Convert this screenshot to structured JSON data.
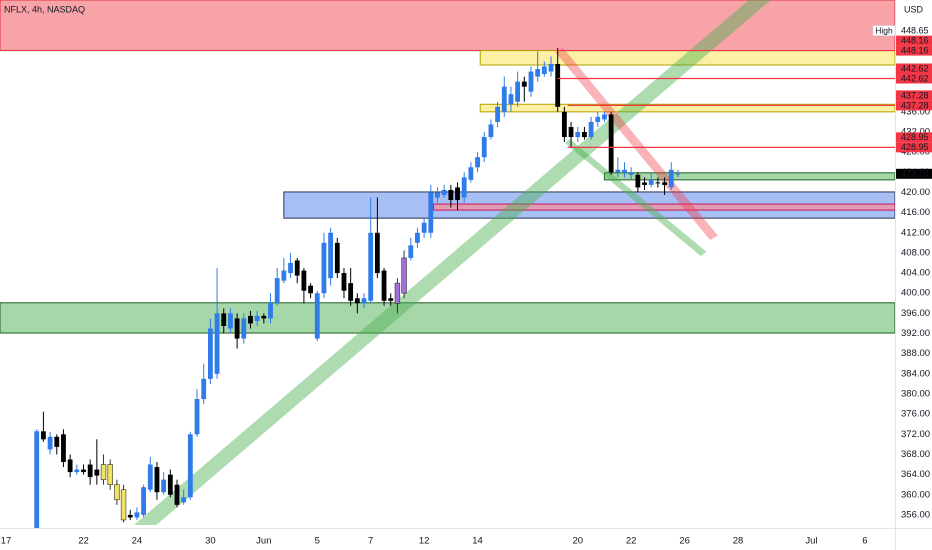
{
  "chart_data": {
    "type": "candlestick",
    "title": "NFLX, 4h, NASDAQ",
    "currency": "USD",
    "up_color": "#2f7bea",
    "down_color": "#000000",
    "grid": false,
    "categories": [
      "17",
      null,
      null,
      null,
      null,
      null,
      null,
      null,
      null,
      null,
      null,
      null,
      "22",
      null,
      null,
      null,
      null,
      null,
      null,
      null,
      "24",
      null,
      null,
      null,
      null,
      null,
      null,
      null,
      null,
      null,
      null,
      "30",
      null,
      null,
      null,
      null,
      null,
      null,
      null,
      "Jun",
      null,
      null,
      null,
      null,
      null,
      null,
      null,
      "5",
      null,
      null,
      null,
      null,
      null,
      null,
      null,
      "7",
      null,
      null,
      null,
      null,
      null,
      null,
      null,
      "12",
      null,
      null,
      null,
      null,
      null,
      null,
      null,
      "14",
      null,
      null,
      null,
      null,
      null,
      null,
      null,
      null,
      null,
      null,
      null,
      null,
      null,
      null,
      "20",
      null,
      null,
      null,
      null,
      null,
      null,
      null,
      "22",
      null,
      null,
      null,
      null,
      null,
      null,
      null,
      "26",
      null,
      null,
      null,
      null,
      null,
      null,
      null,
      "28",
      null,
      null,
      null,
      null,
      null,
      null,
      null,
      null,
      null,
      null,
      "Jul",
      null,
      null,
      null,
      null,
      null,
      null,
      null,
      "6",
      null,
      null,
      null,
      null
    ],
    "open": [
      null,
      null,
      null,
      null,
      null,
      352.5,
      372.6,
      369,
      371.5,
      372,
      367,
      364.5,
      365,
      366,
      365,
      363,
      366,
      362,
      361,
      356,
      355.5,
      356,
      361,
      365.5,
      360.5,
      364,
      362,
      358.5,
      359.5,
      372,
      379,
      383,
      384,
      396,
      393,
      395,
      391,
      395.5,
      394.5,
      395.5,
      395,
      398,
      402.5,
      404,
      406.5,
      404.5,
      401.5,
      391,
      400,
      403,
      410,
      404,
      402,
      399,
      398,
      398.5,
      412,
      404.5,
      399,
      398,
      400,
      407,
      410,
      412,
      412,
      419,
      419.5,
      420.5,
      421,
      419,
      422.5,
      425,
      427,
      431,
      434,
      436,
      437.5,
      438,
      442,
      440,
      443,
      443.5,
      444,
      445.5,
      436,
      433,
      431,
      432,
      431,
      434,
      434.5,
      435.5,
      424,
      424,
      423.5,
      423.5,
      422,
      421.5,
      422,
      422,
      421,
      423.7,
      null,
      null,
      null,
      null,
      null,
      null,
      null,
      null,
      null,
      null,
      null,
      null,
      null,
      null,
      null,
      null,
      null,
      null,
      null,
      null,
      null,
      null,
      null,
      null,
      null,
      null,
      null,
      null,
      null,
      null,
      null,
      null
    ],
    "high": [
      null,
      null,
      null,
      null,
      null,
      373,
      376.5,
      372.5,
      372,
      373,
      368,
      366,
      366,
      367,
      371,
      368,
      367,
      363,
      362,
      357,
      357.5,
      362,
      367.5,
      366.5,
      364.5,
      365,
      363,
      361,
      372.5,
      381,
      386,
      395,
      405,
      397,
      397,
      396,
      396,
      396.5,
      396.5,
      396,
      400,
      405,
      407,
      408,
      407,
      405,
      402,
      400.5,
      412,
      413,
      411,
      405,
      405,
      400,
      400,
      419,
      419,
      405,
      400,
      403,
      408.5,
      411,
      413,
      415,
      421.5,
      421,
      421.5,
      421.5,
      422,
      424,
      426,
      428,
      432,
      434.5,
      438,
      443,
      441,
      444,
      443,
      445,
      448,
      446,
      447,
      448.65,
      437,
      434,
      433,
      433,
      435,
      436,
      436,
      436,
      427,
      426,
      425,
      424,
      423,
      424,
      423,
      423,
      426,
      424.5,
      null,
      null,
      null,
      null,
      null,
      null,
      null,
      null,
      null,
      null,
      null,
      null,
      null,
      null,
      null,
      null,
      null,
      null,
      null,
      null,
      null,
      null,
      null,
      null,
      null,
      null,
      null,
      null,
      null,
      null,
      null,
      null
    ],
    "low": [
      null,
      null,
      null,
      null,
      null,
      352.4,
      370.5,
      368,
      368,
      365.5,
      363.5,
      364,
      364,
      362,
      362,
      362,
      361,
      358,
      354.5,
      355,
      355,
      355.5,
      360.5,
      359,
      360,
      359.5,
      357.5,
      358,
      359,
      371.5,
      378,
      382,
      383,
      392,
      392,
      389,
      390,
      393,
      393.5,
      394,
      394,
      397.5,
      402,
      403,
      402,
      398,
      399,
      390.5,
      399,
      401.5,
      403,
      399,
      397.5,
      396,
      397,
      398,
      403,
      397.5,
      397.5,
      396,
      399,
      406.5,
      409,
      411,
      411,
      418,
      419,
      417,
      416.5,
      418,
      422,
      424,
      426,
      430.5,
      433,
      435,
      436,
      437,
      438,
      439,
      442,
      443,
      443,
      436,
      430,
      429,
      430,
      430.5,
      430.5,
      433,
      434,
      423.5,
      423,
      423,
      422.5,
      420,
      420.5,
      421,
      421,
      419.5,
      420.5,
      423,
      null,
      null,
      null,
      null,
      null,
      null,
      null,
      null,
      null,
      null,
      null,
      null,
      null,
      null,
      null,
      null,
      null,
      null,
      null,
      null,
      null,
      null,
      null,
      null,
      null,
      null,
      null,
      null,
      null,
      null,
      null,
      null
    ],
    "close": [
      null,
      null,
      null,
      null,
      null,
      372.6,
      371,
      371.5,
      369.5,
      366.5,
      364.5,
      365,
      364.5,
      363.5,
      363.8,
      366,
      362,
      359,
      355,
      355.5,
      356.5,
      361.5,
      366,
      360.5,
      363,
      360,
      358,
      359.5,
      372,
      379,
      383,
      393,
      396,
      393.5,
      396,
      391,
      395,
      394,
      395.5,
      395,
      398,
      403,
      404.5,
      406,
      403.5,
      400.5,
      400,
      400,
      410,
      412,
      404,
      400.5,
      398.5,
      398,
      399,
      412,
      404,
      398.5,
      398.5,
      402,
      407,
      409.5,
      412,
      414,
      420,
      420,
      420.5,
      418.5,
      418.5,
      423,
      425,
      427,
      431,
      433.5,
      437,
      441,
      439.5,
      442,
      441,
      444,
      444.5,
      445,
      445.5,
      437,
      431,
      431,
      432,
      431,
      434,
      435,
      435.5,
      424,
      424.5,
      424.5,
      424,
      421,
      421.5,
      422.5,
      421.8,
      421.5,
      424.5,
      423.7,
      null,
      null,
      null,
      null,
      null,
      null,
      null,
      null,
      null,
      null,
      null,
      null,
      null,
      null,
      null,
      null,
      null,
      null,
      null,
      null,
      null,
      null,
      null,
      null,
      null,
      null,
      null,
      null,
      null,
      null,
      null,
      null
    ],
    "colors": [
      null,
      null,
      null,
      null,
      null,
      null,
      null,
      null,
      null,
      null,
      null,
      null,
      null,
      null,
      null,
      "#f2e35c",
      "#f2e35c",
      "#f2e35c",
      "#f2e35c",
      null,
      null,
      null,
      null,
      null,
      null,
      null,
      null,
      null,
      null,
      null,
      null,
      null,
      null,
      null,
      null,
      null,
      null,
      null,
      null,
      null,
      null,
      null,
      null,
      null,
      null,
      null,
      null,
      null,
      null,
      null,
      null,
      null,
      null,
      null,
      null,
      null,
      null,
      null,
      null,
      "#a56fd9",
      "#a56fd9",
      null,
      null,
      null,
      null,
      null,
      null,
      null,
      null,
      null,
      null,
      null,
      null,
      null,
      null,
      null,
      null,
      null,
      null,
      null,
      null,
      null,
      null,
      null,
      null,
      null,
      null,
      null,
      null,
      null,
      null,
      null,
      null,
      null,
      null,
      null,
      null,
      null,
      null,
      null,
      null,
      null,
      null,
      null,
      null,
      null,
      null,
      null,
      null,
      null,
      null,
      null,
      null,
      null,
      null,
      null,
      null,
      null,
      null,
      null,
      null,
      null,
      null,
      null,
      null,
      null,
      null,
      null,
      null,
      null
    ],
    "ylim": [
      353.6,
      458.2
    ],
    "yticks": [
      {
        "value": 356,
        "label": "356.00"
      },
      {
        "value": 360,
        "label": "360.00"
      },
      {
        "value": 364,
        "label": "364.00"
      },
      {
        "value": 368,
        "label": "368.00"
      },
      {
        "value": 372,
        "label": "372.00"
      },
      {
        "value": 376,
        "label": "376.00"
      },
      {
        "value": 380,
        "label": "380.00"
      },
      {
        "value": 384,
        "label": "384.00"
      },
      {
        "value": 388,
        "label": "388.00"
      },
      {
        "value": 392,
        "label": "392.00"
      },
      {
        "value": 396,
        "label": "396.00"
      },
      {
        "value": 400,
        "label": "400.00"
      },
      {
        "value": 404,
        "label": "404.00"
      },
      {
        "value": 408,
        "label": "408.00"
      },
      {
        "value": 412,
        "label": "412.00"
      },
      {
        "value": 416,
        "label": "416.00"
      },
      {
        "value": 420,
        "label": "420.00"
      },
      {
        "value": 424,
        "label": "424.00"
      },
      {
        "value": 428,
        "label": "428.00"
      },
      {
        "value": 432,
        "label": "432.00"
      },
      {
        "value": 436,
        "label": "436.00"
      }
    ],
    "zones": [
      {
        "low": 448.16,
        "high": 458.2,
        "start": -0.5,
        "color": "#f7a3a8",
        "border": "#e0313e"
      },
      {
        "low": 445.3,
        "high": 448.16,
        "start": 71.4,
        "color": "#fbf0a4",
        "border": "#b3a100"
      },
      {
        "low": 436,
        "high": 437.5,
        "start": 71.4,
        "color": "#fbf0a4",
        "border": "#b3a100"
      },
      {
        "low": 414.9,
        "high": 420.1,
        "start": 42,
        "color": "#a8bff5",
        "border": "#2a3550"
      },
      {
        "low": 416.5,
        "high": 417.7,
        "start": 64.4,
        "color": "#e29bb3",
        "border": "#c2185b"
      },
      {
        "low": 392.1,
        "high": 398.1,
        "start": -0.5,
        "color": "#a6d7a8",
        "border": "#1b5e20"
      },
      {
        "low": 422.5,
        "high": 423.9,
        "start": 90,
        "color": "#a6d7a8",
        "border": "#1b5e20"
      }
    ],
    "channels": [
      {
        "x": [
          19.56,
          111.6,
          114.9,
          22.9
        ],
        "y": [
          354,
          458.2,
          458.2,
          354
        ],
        "color": "rgba(76,175,80,0.45)"
      },
      {
        "x": [
          82.6,
          83.8,
          107.0,
          105.8
        ],
        "y": [
          447.9,
          448.7,
          411.4,
          410.6
        ],
        "color": "rgba(242,54,69,0.38)"
      },
      {
        "x": [
          84.1,
          84.8,
          105.3,
          104.4
        ],
        "y": [
          429.8,
          430.6,
          408.2,
          407.4
        ],
        "color": "rgba(76,175,80,0.45)"
      }
    ],
    "levels": [
      {
        "value": 448.16,
        "start": 83,
        "color": "#f23645"
      },
      {
        "value": 442.62,
        "start": 83,
        "color": "#f23645"
      },
      {
        "value": 437.28,
        "start": 84.5,
        "color": "#f23645"
      },
      {
        "value": 428.95,
        "start": 84.5,
        "color": "#f23645"
      }
    ],
    "price_labels": [
      {
        "value": 423.7,
        "label": "423.70",
        "color": "#000000",
        "text_color": "#ffffff"
      },
      {
        "value": 428.95,
        "label": "428.95",
        "color": "#f23645",
        "text_color": "#ffffff"
      },
      {
        "value": 428.95,
        "label": "428.95",
        "color": "#f23645",
        "text_color": "#ffffff"
      },
      {
        "value": 437.28,
        "label": "437.28",
        "color": "#f23645",
        "text_color": "#ffffff"
      },
      {
        "value": 437.28,
        "label": "437.28",
        "color": "#f23645",
        "text_color": "#ffffff"
      },
      {
        "value": 442.62,
        "label": "442.62",
        "color": "#f23645",
        "text_color": "#ffffff"
      },
      {
        "value": 442.62,
        "label": "442.62",
        "color": "#f23645",
        "text_color": "#ffffff"
      },
      {
        "value": 448.16,
        "label": "448.16",
        "color": "#f23645",
        "text_color": "#ffffff"
      },
      {
        "value": 448.16,
        "label": "448.16",
        "color": "#f23645",
        "text_color": "#ffffff"
      },
      {
        "value": 448.65,
        "label": "448.65",
        "tag": "High",
        "color": "#ffffff",
        "text_color": "#131722"
      }
    ]
  }
}
